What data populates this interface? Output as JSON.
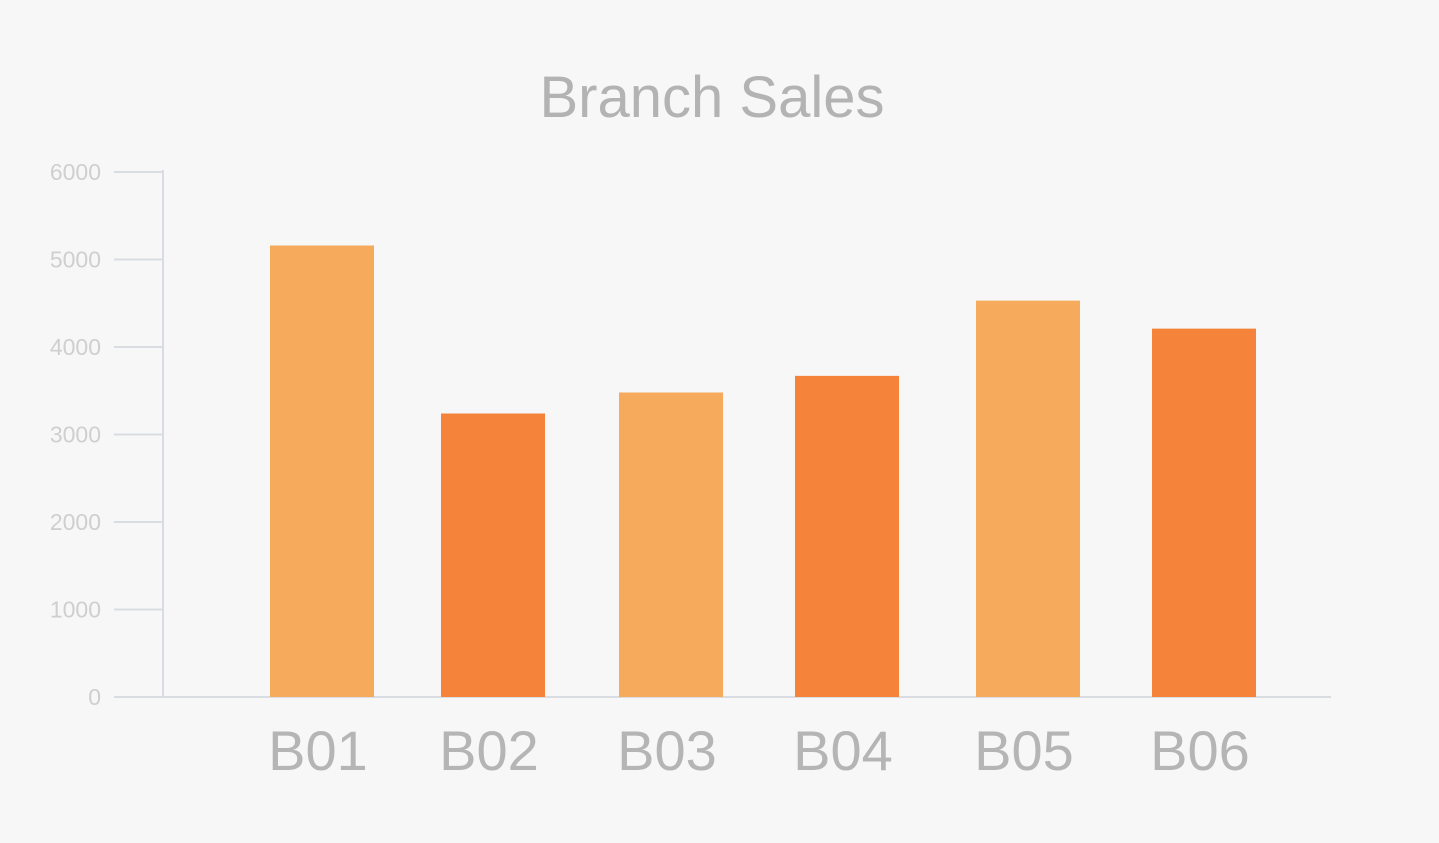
{
  "chart_data": {
    "type": "bar",
    "title": "Branch Sales",
    "xlabel": "",
    "ylabel": "",
    "categories": [
      "B01",
      "B02",
      "B03",
      "B04",
      "B05",
      "B06"
    ],
    "values": [
      5160,
      3240,
      3480,
      3670,
      4530,
      4210
    ],
    "bar_colors": [
      "#f6aa5c",
      "#f5843a",
      "#f6aa5c",
      "#f5843a",
      "#f6aa5c",
      "#f5843a"
    ],
    "ylim": [
      0,
      6000
    ],
    "yticks": [
      0,
      1000,
      2000,
      3000,
      4000,
      5000,
      6000
    ],
    "grid": false,
    "legend": "none"
  }
}
